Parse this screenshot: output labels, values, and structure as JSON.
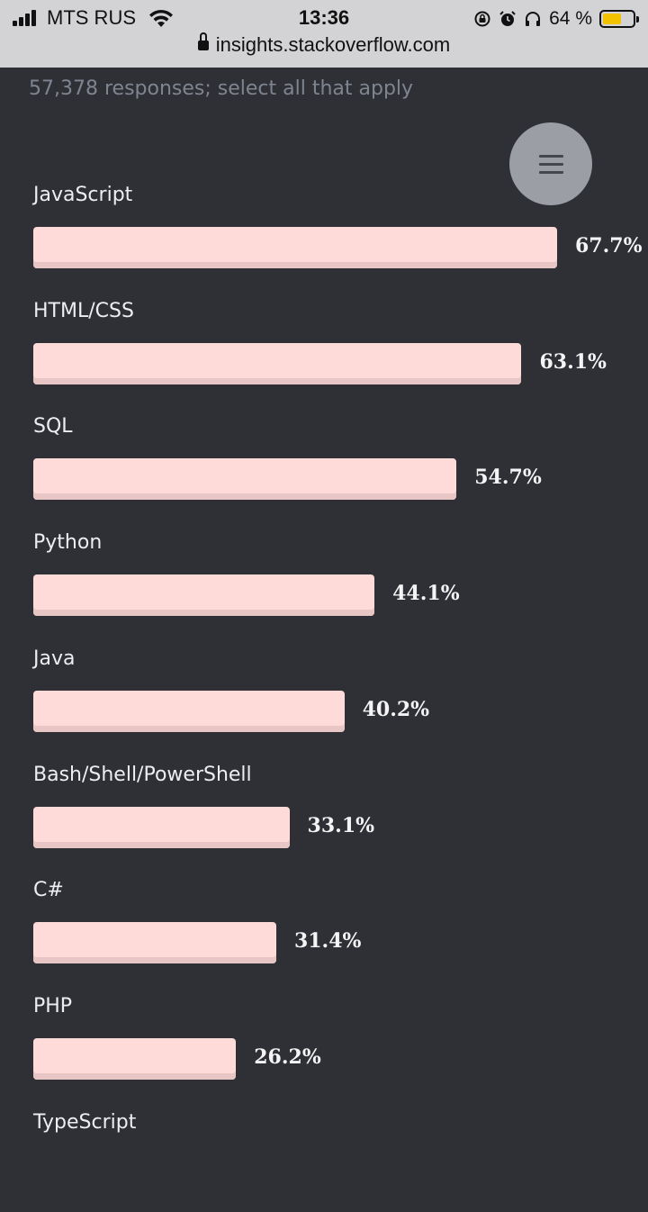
{
  "status_bar": {
    "carrier": "MTS RUS",
    "time": "13:36",
    "battery_text": "64 %",
    "battery_level": 0.64,
    "icons": [
      "signal-icon",
      "wifi-icon",
      "orientation-lock-icon",
      "alarm-icon",
      "headphones-icon",
      "battery-icon"
    ]
  },
  "browser": {
    "url": "insights.stackoverflow.com",
    "lock_icon": "lock-icon"
  },
  "survey": {
    "subtitle": "57,378 responses; select all that apply"
  },
  "menu": {
    "icon": "hamburger-icon"
  },
  "colors": {
    "background": "#2f3035",
    "bar": "#fedad9",
    "bar_shadow": "#e8c6c5",
    "status_bar": "#d3d3d5"
  },
  "chart_data": {
    "type": "bar",
    "orientation": "horizontal",
    "categories": [
      "JavaScript",
      "HTML/CSS",
      "SQL",
      "Python",
      "Java",
      "Bash/Shell/PowerShell",
      "C#",
      "PHP",
      "TypeScript"
    ],
    "values": [
      67.7,
      63.1,
      54.7,
      44.1,
      40.2,
      33.1,
      31.4,
      26.2,
      null
    ],
    "value_labels": [
      "67.7%",
      "63.1%",
      "54.7%",
      "44.1%",
      "40.2%",
      "33.1%",
      "31.4%",
      "26.2%",
      ""
    ],
    "unit": "%",
    "grid": false
  }
}
